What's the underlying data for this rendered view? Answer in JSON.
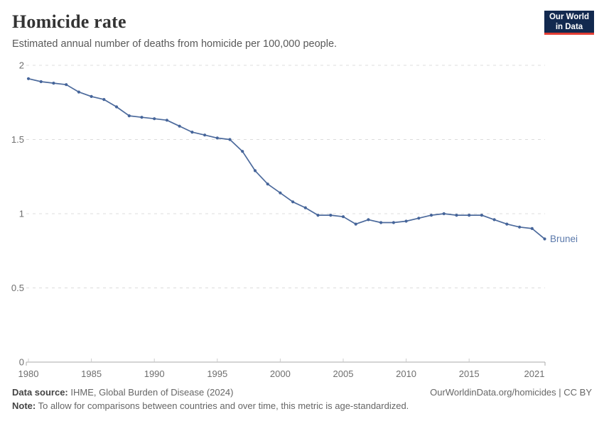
{
  "header": {
    "title": "Homicide rate",
    "subtitle": "Estimated annual number of deaths from homicide per 100,000 people."
  },
  "logo": {
    "line1": "Our World",
    "line2": "in Data",
    "bg": "#12294f",
    "accent": "#e23d33"
  },
  "chart_data": {
    "type": "line",
    "title": "Homicide rate",
    "xlabel": "",
    "ylabel": "",
    "xlim": [
      1980,
      2021
    ],
    "ylim": [
      0,
      2
    ],
    "yticks": [
      0,
      0.5,
      1,
      1.5,
      2
    ],
    "xticks": [
      1980,
      1985,
      1990,
      1995,
      2000,
      2005,
      2010,
      2015,
      2021
    ],
    "grid": true,
    "legend_position": "end-of-line-label",
    "x": [
      1980,
      1981,
      1982,
      1983,
      1984,
      1985,
      1986,
      1987,
      1988,
      1989,
      1990,
      1991,
      1992,
      1993,
      1994,
      1995,
      1996,
      1997,
      1998,
      1999,
      2000,
      2001,
      2002,
      2003,
      2004,
      2005,
      2006,
      2007,
      2008,
      2009,
      2010,
      2011,
      2012,
      2013,
      2014,
      2015,
      2016,
      2017,
      2018,
      2019,
      2020,
      2021
    ],
    "series": [
      {
        "name": "Brunei",
        "values": [
          1.91,
          1.89,
          1.88,
          1.87,
          1.82,
          1.79,
          1.77,
          1.72,
          1.66,
          1.65,
          1.64,
          1.63,
          1.59,
          1.55,
          1.53,
          1.51,
          1.5,
          1.42,
          1.29,
          1.2,
          1.14,
          1.08,
          1.04,
          0.99,
          0.99,
          0.98,
          0.93,
          0.96,
          0.94,
          0.94,
          0.95,
          0.97,
          0.99,
          1.0,
          0.99,
          0.99,
          0.99,
          0.96,
          0.93,
          0.91,
          0.9,
          0.83
        ]
      }
    ],
    "colors": {
      "line": "#4c6a9c",
      "point": "#46659a",
      "entity_label": "#5b79ab",
      "gridline": "#dcdcdc",
      "axis": "#a8a8a8",
      "tick": "#cccccc",
      "tick_label": "#6e6e6e"
    }
  },
  "footer": {
    "source_label": "Data source:",
    "source": "IHME, Global Burden of Disease (2024)",
    "note_label": "Note:",
    "note": "To allow for comparisons between countries and over time, this metric is age-standardized.",
    "link": "OurWorldinData.org/homicides | CC BY"
  }
}
